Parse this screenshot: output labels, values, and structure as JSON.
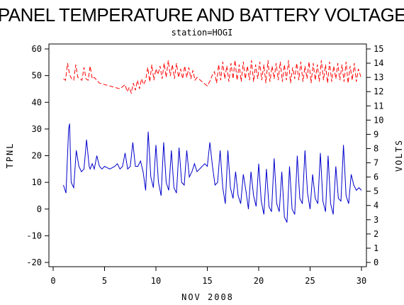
{
  "chart_data": {
    "type": "line",
    "title": "PANEL TEMPERATURE AND BATTERY VOLTAGE",
    "subtitle": "station=HOGI",
    "xlabel": "NOV 2008",
    "ylabel_left": "TPNL",
    "ylabel_right": "VOLTS",
    "xlim": [
      0,
      30
    ],
    "ylim_left": [
      -20,
      60
    ],
    "ylim_right": [
      0,
      15
    ],
    "x_ticks": [
      0,
      5,
      10,
      15,
      20,
      25,
      30
    ],
    "y_ticks_left": [
      -20,
      -10,
      0,
      10,
      20,
      30,
      40,
      50,
      60
    ],
    "y_ticks_right": [
      0,
      1,
      2,
      3,
      4,
      5,
      6,
      7,
      8,
      9,
      10,
      11,
      12,
      13,
      14,
      15
    ],
    "grid": false,
    "series": [
      {
        "axis": "left",
        "color": "#0000cc",
        "style": "solid",
        "x": [
          1.0,
          1.25,
          1.5,
          1.6,
          1.75,
          2.0,
          2.25,
          2.5,
          2.75,
          3.0,
          3.25,
          3.5,
          3.6,
          3.8,
          4.0,
          4.25,
          4.5,
          4.75,
          5.0,
          5.5,
          6.0,
          6.25,
          6.5,
          6.75,
          7.0,
          7.25,
          7.5,
          7.75,
          8.0,
          8.25,
          8.5,
          8.75,
          9.0,
          9.25,
          9.5,
          9.75,
          10.0,
          10.25,
          10.5,
          10.75,
          11.0,
          11.25,
          11.5,
          11.75,
          12.0,
          12.25,
          12.5,
          12.75,
          13.0,
          13.25,
          13.5,
          13.75,
          14.0,
          14.25,
          14.5,
          14.75,
          15.0,
          15.25,
          15.5,
          15.75,
          16.0,
          16.25,
          16.5,
          16.75,
          17.0,
          17.25,
          17.5,
          17.75,
          18.0,
          18.25,
          18.5,
          18.75,
          19.0,
          19.25,
          19.5,
          19.75,
          20.0,
          20.25,
          20.5,
          20.75,
          21.0,
          21.25,
          21.5,
          21.75,
          22.0,
          22.25,
          22.5,
          22.75,
          23.0,
          23.25,
          23.5,
          23.75,
          24.0,
          24.25,
          24.5,
          24.75,
          25.0,
          25.25,
          25.5,
          25.75,
          26.0,
          26.25,
          26.5,
          26.75,
          27.0,
          27.25,
          27.5,
          27.75,
          28.0,
          28.25,
          28.5,
          28.75,
          29.0,
          29.25,
          29.5,
          29.75,
          30.0
        ],
        "y": [
          9,
          6,
          30,
          32,
          10,
          8,
          22,
          16,
          14,
          15,
          26,
          16,
          15,
          17,
          15,
          20,
          16,
          15,
          16,
          15,
          16,
          17,
          15,
          16,
          21,
          15,
          16,
          25,
          16,
          16,
          18,
          14,
          7,
          29,
          12,
          8,
          24,
          10,
          5,
          25,
          10,
          7,
          22,
          8,
          6,
          23,
          10,
          9,
          22,
          12,
          14,
          17,
          14,
          15,
          16,
          17,
          16,
          25,
          16,
          9,
          10,
          22,
          8,
          2,
          22,
          8,
          4,
          14,
          5,
          2,
          13,
          7,
          0,
          14,
          5,
          1,
          17,
          3,
          -2,
          15,
          1,
          -1,
          19,
          2,
          -1,
          14,
          -3,
          -5,
          16,
          0,
          -2,
          20,
          4,
          2,
          22,
          6,
          0,
          13,
          4,
          2,
          21,
          3,
          -1,
          20,
          2,
          -2,
          16,
          4,
          3,
          24,
          5,
          2,
          13,
          9,
          7,
          8,
          7
        ]
      },
      {
        "axis": "right",
        "color": "#ff0000",
        "style": "dashed",
        "x": [
          1.0,
          1.2,
          1.4,
          1.6,
          1.8,
          2.0,
          2.2,
          2.4,
          2.6,
          2.8,
          3.0,
          3.2,
          3.4,
          3.6,
          3.8,
          4.0,
          4.5,
          5.0,
          5.5,
          6.0,
          6.5,
          7.0,
          7.2,
          7.4,
          7.6,
          7.8,
          8.0,
          8.2,
          8.4,
          8.6,
          8.8,
          9.0,
          9.2,
          9.4,
          9.6,
          9.8,
          10.0,
          10.2,
          10.4,
          10.6,
          10.8,
          11.0,
          11.2,
          11.4,
          11.6,
          11.8,
          12.0,
          12.2,
          12.4,
          12.6,
          12.8,
          13.0,
          13.2,
          13.4,
          13.6,
          13.8,
          14.0,
          14.5,
          15.0,
          15.3,
          15.5,
          15.7,
          15.9,
          16.1,
          16.3,
          16.5,
          16.7,
          16.9,
          17.1,
          17.3,
          17.5,
          17.7,
          17.9,
          18.1,
          18.3,
          18.5,
          18.7,
          18.9,
          19.1,
          19.3,
          19.5,
          19.7,
          19.9,
          20.1,
          20.3,
          20.5,
          20.7,
          20.9,
          21.1,
          21.3,
          21.5,
          21.7,
          21.9,
          22.1,
          22.3,
          22.5,
          22.7,
          22.9,
          23.1,
          23.3,
          23.5,
          23.7,
          23.9,
          24.1,
          24.3,
          24.5,
          24.7,
          24.9,
          25.1,
          25.3,
          25.5,
          25.7,
          25.9,
          26.1,
          26.3,
          26.5,
          26.7,
          26.9,
          27.1,
          27.3,
          27.5,
          27.7,
          27.9,
          28.1,
          28.3,
          28.5,
          28.7,
          28.9,
          29.1,
          29.3,
          29.5,
          29.7,
          30.0
        ],
        "y": [
          12.9,
          12.8,
          14.0,
          13.2,
          12.9,
          12.8,
          13.9,
          13.0,
          12.9,
          12.8,
          13.7,
          12.9,
          12.8,
          13.8,
          12.9,
          13.0,
          12.6,
          12.5,
          12.4,
          12.3,
          12.2,
          12.5,
          12.0,
          12.3,
          11.9,
          12.6,
          12.1,
          12.8,
          12.2,
          12.9,
          12.5,
          12.8,
          13.7,
          12.7,
          13.9,
          12.8,
          13.6,
          13.2,
          13.8,
          12.9,
          14.0,
          13.0,
          14.2,
          13.1,
          13.9,
          12.9,
          14.0,
          13.0,
          13.6,
          12.9,
          13.8,
          13.0,
          13.7,
          12.9,
          13.5,
          12.8,
          13.0,
          12.7,
          12.4,
          12.8,
          13.2,
          13.4,
          12.6,
          13.9,
          12.8,
          14.1,
          12.9,
          13.8,
          12.7,
          14.0,
          12.9,
          14.2,
          12.8,
          13.9,
          12.7,
          14.1,
          12.9,
          13.8,
          12.8,
          14.2,
          12.7,
          13.9,
          12.9,
          14.1,
          12.8,
          13.9,
          12.6,
          14.2,
          12.7,
          13.8,
          12.9,
          14.0,
          12.8,
          14.1,
          12.7,
          13.9,
          12.8,
          14.2,
          12.6,
          13.7,
          12.9,
          14.0,
          12.8,
          14.1,
          12.7,
          13.8,
          12.9,
          14.1,
          12.6,
          14.0,
          12.8,
          13.9,
          12.7,
          14.2,
          12.8,
          13.9,
          12.6,
          14.1,
          12.7,
          13.8,
          12.9,
          14.0,
          12.8,
          13.9,
          12.7,
          14.1,
          12.6,
          13.8,
          12.8,
          14.0,
          12.7,
          13.6,
          12.9
        ]
      }
    ]
  }
}
